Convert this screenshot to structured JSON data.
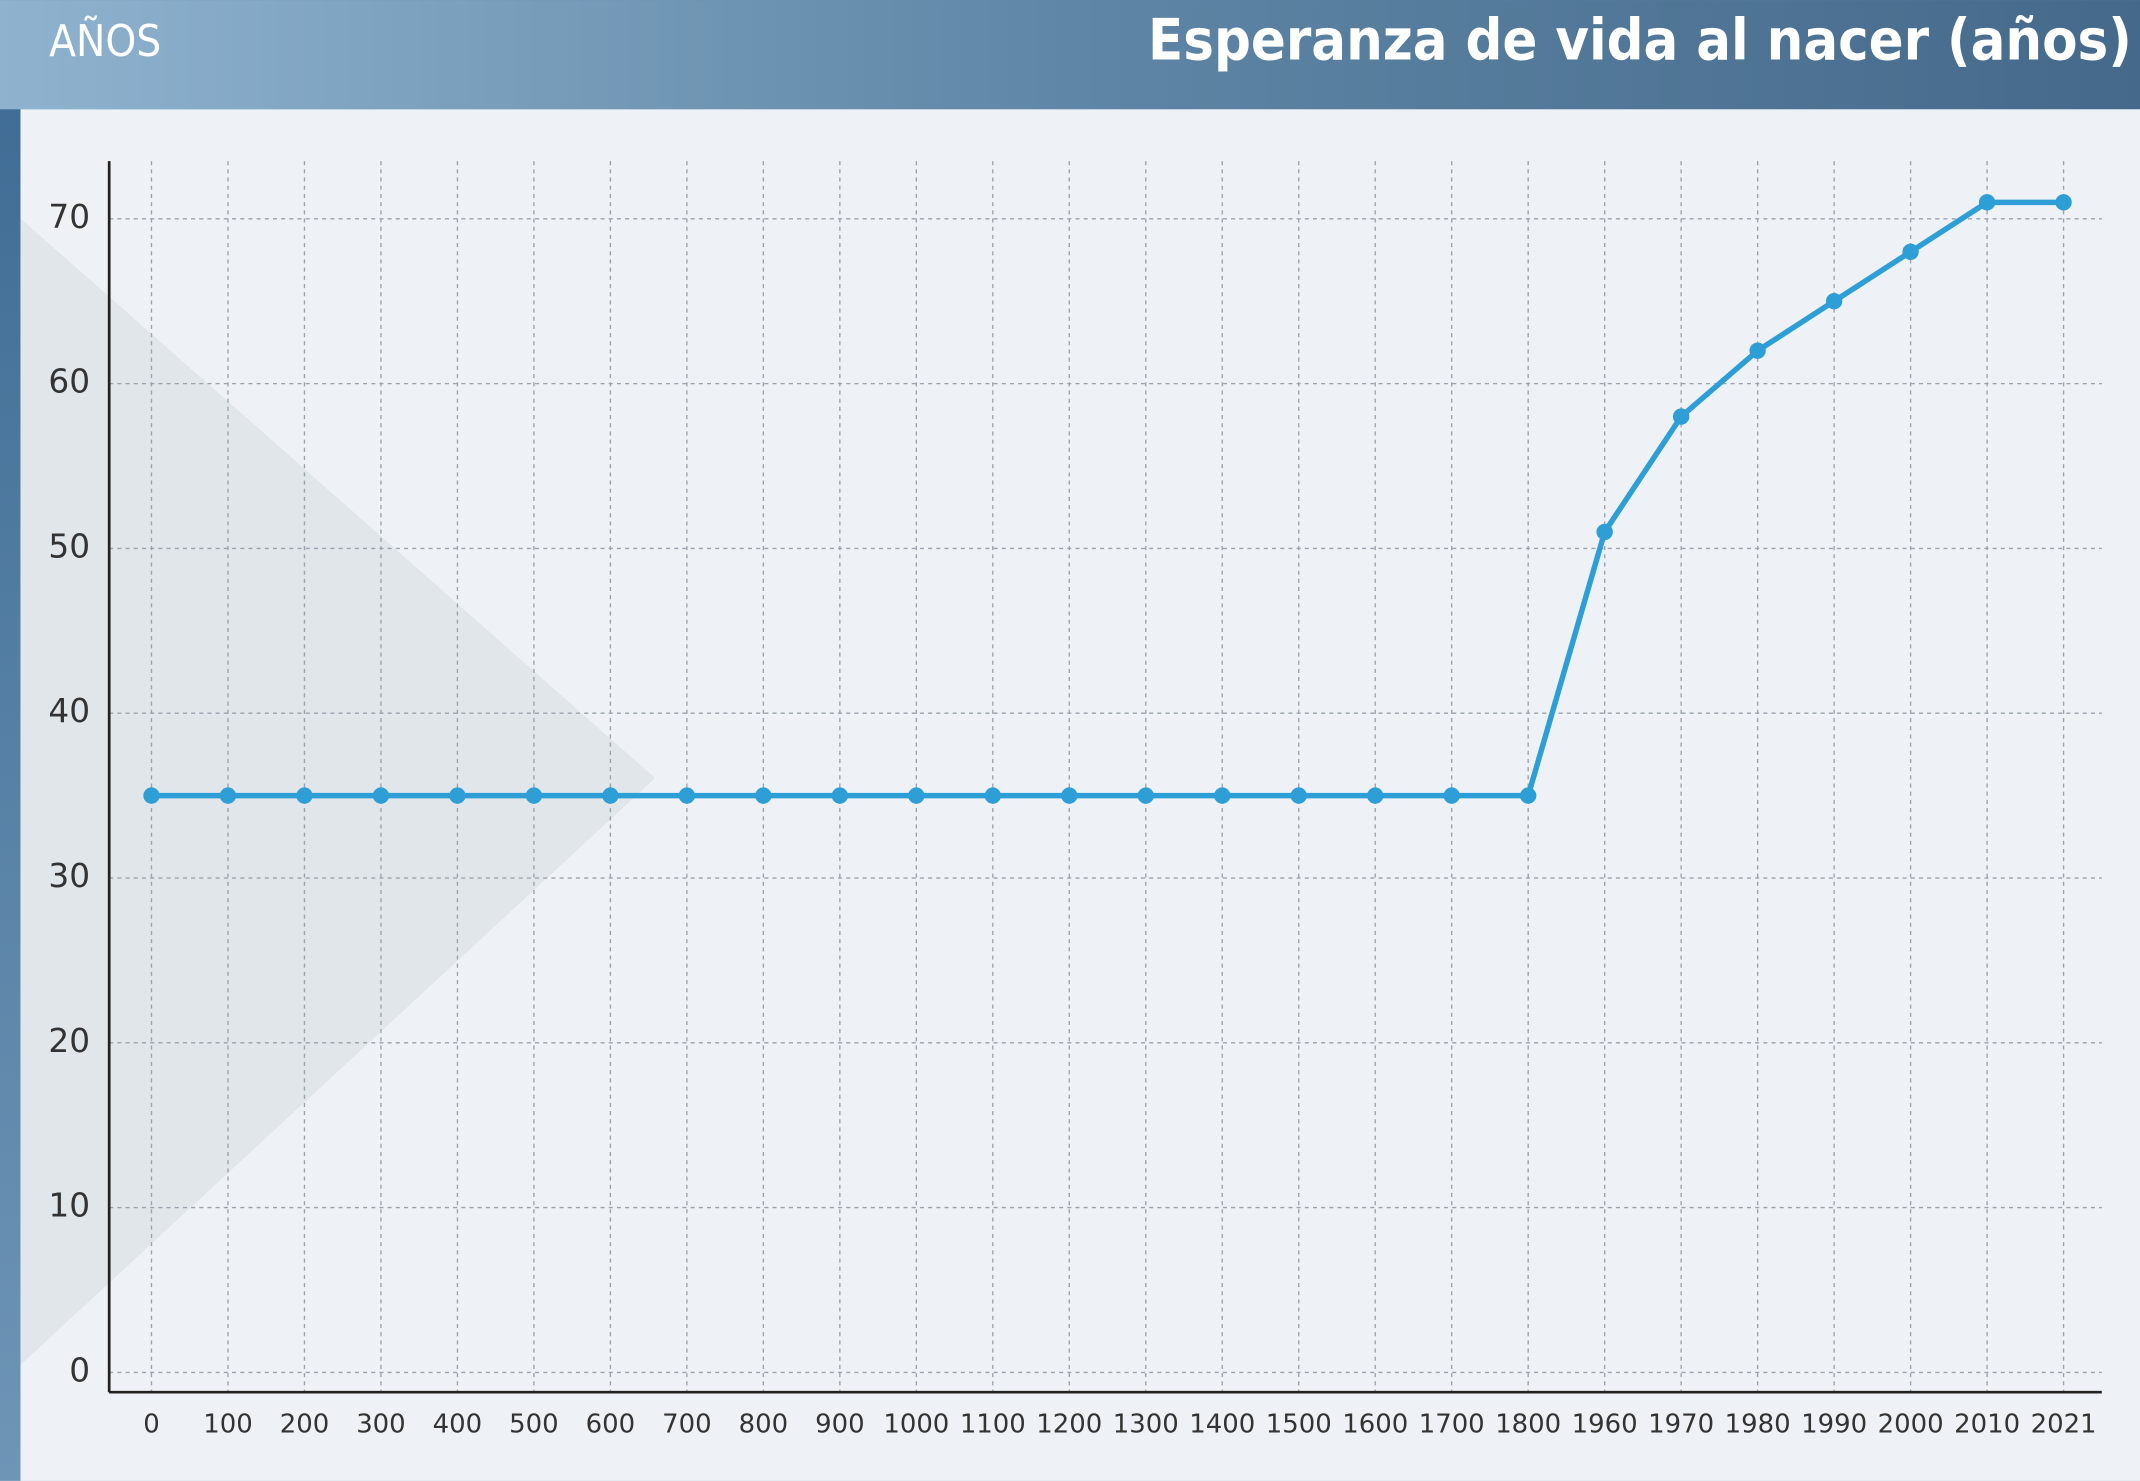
{
  "header_label": "AÑOS",
  "chart_data": {
    "type": "line",
    "title": "Esperanza de vida al nacer (años)",
    "categories": [
      "0",
      "100",
      "200",
      "300",
      "400",
      "500",
      "600",
      "700",
      "800",
      "900",
      "1000",
      "1100",
      "1200",
      "1300",
      "1400",
      "1500",
      "1600",
      "1700",
      "1800",
      "1960",
      "1970",
      "1980",
      "1990",
      "2000",
      "2010",
      "2021"
    ],
    "series": [
      {
        "name": "Esperanza de vida",
        "color": "#2e9fd6",
        "values": [
          35,
          35,
          35,
          35,
          35,
          35,
          35,
          35,
          35,
          35,
          35,
          35,
          35,
          35,
          35,
          35,
          35,
          35,
          35,
          51,
          58,
          62,
          65,
          68,
          71,
          71
        ]
      }
    ],
    "ylim": [
      -1.2,
      73.5
    ],
    "yticks": [
      0,
      10,
      20,
      30,
      40,
      50,
      60,
      70
    ],
    "grid": true
  }
}
